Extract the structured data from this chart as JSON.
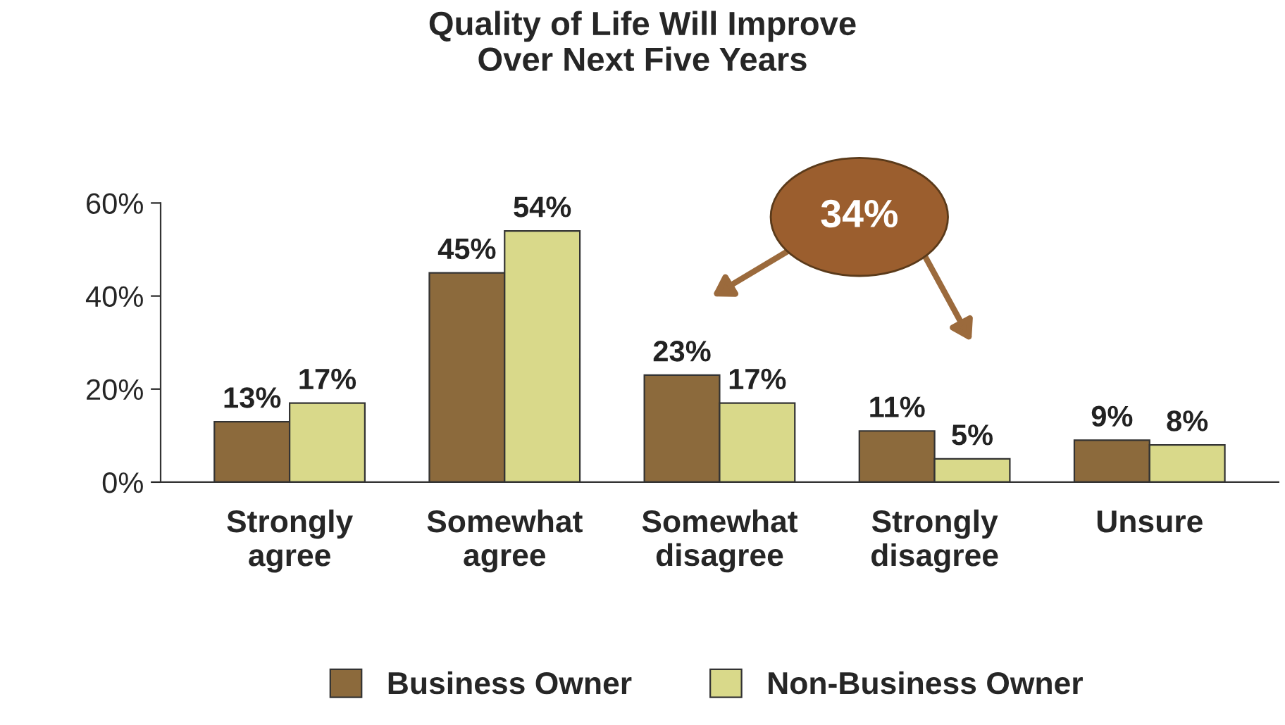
{
  "chart_data": {
    "type": "bar",
    "title": "Quality of Life Will Improve\nOver Next Five Years",
    "categories": [
      "Strongly\nagree",
      "Somewhat\nagree",
      "Somewhat\ndisagree",
      "Strongly\ndisagree",
      "Unsure"
    ],
    "series": [
      {
        "name": "Business Owner",
        "color": "#8c6a3c",
        "values": [
          13,
          45,
          23,
          11,
          9
        ],
        "value_labels": [
          "13%",
          "45%",
          "23%",
          "11%",
          "9%"
        ]
      },
      {
        "name": "Non-Business Owner",
        "color": "#d9d98a",
        "values": [
          17,
          54,
          17,
          5,
          8
        ],
        "value_labels": [
          "17%",
          "54%",
          "17%",
          "5%",
          "8%"
        ]
      }
    ],
    "ylim": [
      0,
      60
    ],
    "yticks": [
      {
        "value": 0,
        "label": "0%"
      },
      {
        "value": 20,
        "label": "20%"
      },
      {
        "value": 40,
        "label": "40%"
      },
      {
        "value": 60,
        "label": "60%"
      }
    ],
    "annotations": [
      "34%"
    ],
    "legend": "bottom",
    "grid": false
  }
}
